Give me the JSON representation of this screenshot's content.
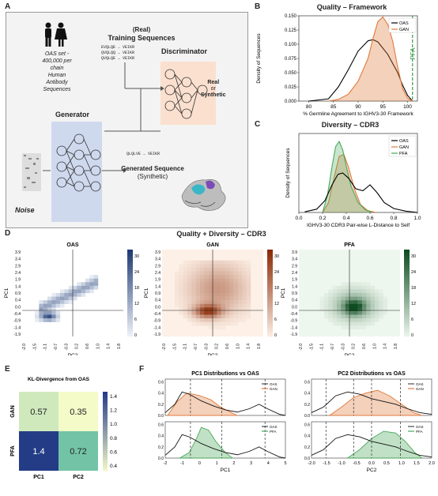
{
  "panels": {
    "a": "A",
    "b": "B",
    "c": "C",
    "d": "D",
    "e": "E",
    "f": "F"
  },
  "schematic": {
    "oas_text": [
      "OAS set -",
      "400,000 per",
      "chain",
      "Human",
      "Antibody",
      "Sequences"
    ],
    "training_title": [
      "(Real)",
      "Training Sequences"
    ],
    "training_seqs": [
      "EVQLQE … VEIKR",
      "QVQLQQ … VEIKR",
      "QVQLQE … VEIKR"
    ],
    "discriminator": "Discriminator",
    "real_or_synthetic": [
      "Real",
      "or",
      "Synthetic"
    ],
    "generator": "Generator",
    "noise": "Noise",
    "generated_seq": "QLQLVE … VEIKR",
    "generated_title": [
      "Generated Sequence",
      "(Synthetic)"
    ]
  },
  "chart_b": {
    "title": "Quality – Framework",
    "xlabel": "% Germline Agreement to IGHV3-30 Framework",
    "ylabel": "Density of Sequences",
    "pfa_label": "PFA",
    "chart_data": {
      "type": "area",
      "xlim": [
        78,
        102
      ],
      "ylim": [
        0,
        0.15
      ],
      "xticks": [
        "80",
        "85",
        "90",
        "95",
        "100"
      ],
      "yticks": [
        "0.000",
        "0.025",
        "0.050",
        "0.075",
        "0.100",
        "0.125",
        "0.150"
      ],
      "series": [
        {
          "name": "OAS",
          "color": "#000000",
          "x": [
            80,
            84,
            86,
            88,
            90,
            92,
            93,
            94,
            96,
            98,
            99,
            100,
            101
          ],
          "y": [
            0,
            0.004,
            0.025,
            0.055,
            0.088,
            0.106,
            0.108,
            0.104,
            0.082,
            0.05,
            0.028,
            0.01,
            0
          ]
        },
        {
          "name": "GAN",
          "color": "#e07a3c",
          "x": [
            84,
            86,
            88,
            90,
            92,
            93,
            94,
            95,
            96,
            97,
            98,
            99,
            100,
            101
          ],
          "y": [
            0,
            0.003,
            0.012,
            0.035,
            0.075,
            0.11,
            0.14,
            0.148,
            0.135,
            0.105,
            0.06,
            0.022,
            0.005,
            0
          ]
        }
      ],
      "pfa_x": 101
    }
  },
  "chart_c": {
    "title": "Diversity – CDR3",
    "xlabel": "IGHV3-30 CDR3 Pair-wise L-Distance to Self",
    "ylabel": "Density of Sequences",
    "chart_data": {
      "type": "area",
      "xlim": [
        0,
        1
      ],
      "xticks": [
        "0.0",
        "0.2",
        "0.4",
        "0.6",
        "0.8",
        "1.0"
      ],
      "series": [
        {
          "name": "OAS",
          "color": "#000000",
          "x": [
            0.05,
            0.15,
            0.22,
            0.28,
            0.33,
            0.37,
            0.42,
            0.48,
            0.54,
            0.6,
            0.66,
            0.72,
            0.8,
            0.9,
            1.0
          ],
          "y": [
            0.01,
            0.05,
            0.18,
            0.42,
            0.58,
            0.6,
            0.52,
            0.36,
            0.33,
            0.42,
            0.3,
            0.15,
            0.06,
            0.02,
            0
          ]
        },
        {
          "name": "GAN",
          "color": "#e07a3c",
          "x": [
            0.2,
            0.25,
            0.3,
            0.34,
            0.38,
            0.42,
            0.47,
            0.52,
            0.58,
            0.65
          ],
          "y": [
            0,
            0.15,
            0.55,
            0.85,
            0.88,
            0.68,
            0.35,
            0.12,
            0.03,
            0
          ]
        },
        {
          "name": "PFA",
          "color": "#4aa85a",
          "x": [
            0.2,
            0.24,
            0.28,
            0.31,
            0.34,
            0.37,
            0.4,
            0.44,
            0.5,
            0.56,
            0.62
          ],
          "y": [
            0,
            0.25,
            0.7,
            1.0,
            1.08,
            0.95,
            0.7,
            0.4,
            0.15,
            0.04,
            0
          ]
        }
      ]
    }
  },
  "heatmaps": {
    "title": "Quality + Diversity – CDR3",
    "items": [
      {
        "title": "OAS",
        "ylabel": "PC1",
        "xlabel": "PC2",
        "cmap": [
          "#f0f4fa",
          "#1f3b73"
        ]
      },
      {
        "title": "GAN",
        "ylabel": "PC1",
        "xlabel": "PC2",
        "cmap": [
          "#fdf0e6",
          "#8b2a05"
        ]
      },
      {
        "title": "PFA",
        "ylabel": "PC1",
        "xlabel": "PC2",
        "cmap": [
          "#eef7ee",
          "#0f4d22"
        ]
      }
    ],
    "yticks": [
      "3.9",
      "3.4",
      "2.9",
      "2.4",
      "1.9",
      "1.4",
      "0.9",
      "0.4",
      "0.0",
      "-0.4",
      "-0.9",
      "-1.4",
      "-1.9"
    ],
    "xticks": [
      "-2.0",
      "-1.5",
      "-1.1",
      "-0.7",
      "-0.3",
      "0.2",
      "0.6",
      "1.0",
      "1.4",
      "1.8"
    ],
    "cbar_ticks": [
      "30",
      "24",
      "18",
      "12",
      "6",
      "0"
    ]
  },
  "kl": {
    "title": "KL-Divergence from OAS",
    "rows": [
      "GAN",
      "PFA"
    ],
    "cols": [
      "PC1",
      "PC2"
    ],
    "values": [
      [
        "0.57",
        "0.35"
      ],
      [
        "1.4",
        "0.72"
      ]
    ],
    "cbar_ticks": [
      "1.4",
      "1.2",
      "1.0",
      "0.8",
      "0.6",
      "0.4"
    ]
  },
  "dist_pc1": {
    "title": "PC1 Distributions vs OAS",
    "xlabel": "PC1",
    "xticks": [
      "-2",
      "-1",
      "0",
      "1",
      "2",
      "3",
      "4",
      "5"
    ],
    "yticks": [
      "0.0",
      "0.2",
      "0.4",
      "0.6"
    ],
    "legend_top": [
      "OAS",
      "GAN"
    ],
    "legend_bottom": [
      "OAS",
      "PFA"
    ]
  },
  "dist_pc2": {
    "title": "PC2 Distributions vs OAS",
    "xlabel": "PC2",
    "xticks": [
      "-2.0",
      "-1.5",
      "-1.0",
      "-0.5",
      "0.0",
      "0.5",
      "1.0",
      "1.5",
      "2.0"
    ],
    "yticks": [
      "0.0",
      "0.2",
      "0.4",
      "0.6"
    ],
    "legend_top": [
      "OAS",
      "GAN"
    ],
    "legend_bottom": [
      "OAS",
      "PFA"
    ]
  }
}
